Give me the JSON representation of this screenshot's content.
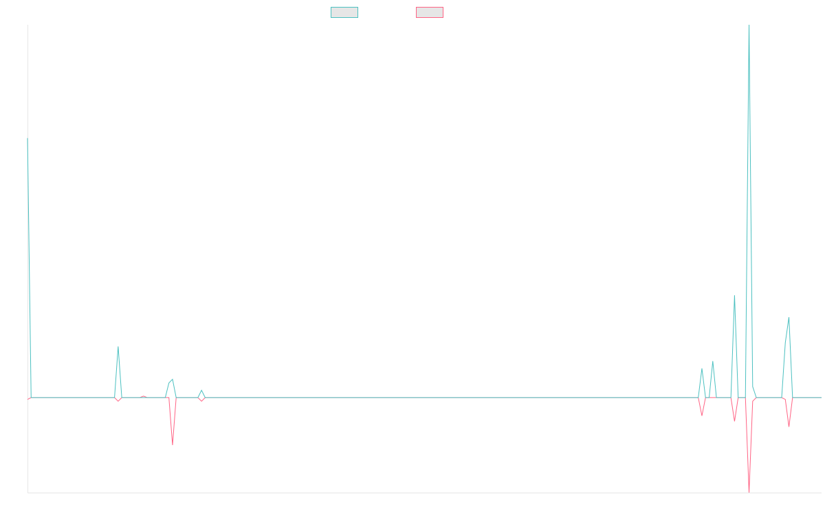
{
  "chart_data": {
    "type": "line",
    "title": "",
    "xlabel": "",
    "ylabel": "",
    "xlim": [
      0,
      219
    ],
    "ylim": [
      -26,
      102
    ],
    "grid": false,
    "legend": {
      "placement": "top-center"
    },
    "series": [
      {
        "name": "",
        "color": "#4bc0c0",
        "legend_fill": "#e6e6e6",
        "points": [
          [
            0,
            71
          ],
          [
            1,
            0
          ],
          [
            24,
            0
          ],
          [
            25,
            14
          ],
          [
            26,
            0
          ],
          [
            31,
            0
          ],
          [
            32,
            0
          ],
          [
            33,
            0
          ],
          [
            38,
            0
          ],
          [
            39,
            4
          ],
          [
            40,
            5
          ],
          [
            41,
            0
          ],
          [
            47,
            0
          ],
          [
            48,
            2
          ],
          [
            49,
            0
          ],
          [
            185,
            0
          ],
          [
            186,
            8
          ],
          [
            187,
            0
          ],
          [
            188,
            0
          ],
          [
            189,
            10
          ],
          [
            190,
            0
          ],
          [
            194,
            0
          ],
          [
            195,
            28
          ],
          [
            196,
            0
          ],
          [
            198,
            0
          ],
          [
            199,
            102
          ],
          [
            200,
            3
          ],
          [
            201,
            0
          ],
          [
            208,
            0
          ],
          [
            209,
            15
          ],
          [
            210,
            22
          ],
          [
            211,
            0
          ],
          [
            219,
            0
          ]
        ]
      },
      {
        "name": "",
        "color": "#ff6384",
        "legend_fill": "#e6e6e6",
        "points": [
          [
            0,
            -0.5
          ],
          [
            1,
            0
          ],
          [
            24,
            0
          ],
          [
            25,
            -1
          ],
          [
            26,
            0
          ],
          [
            31,
            0
          ],
          [
            32,
            0.4
          ],
          [
            33,
            0
          ],
          [
            38,
            0
          ],
          [
            39,
            0
          ],
          [
            40,
            -13
          ],
          [
            41,
            0
          ],
          [
            47,
            0
          ],
          [
            48,
            -1
          ],
          [
            49,
            0
          ],
          [
            185,
            0
          ],
          [
            186,
            -5
          ],
          [
            187,
            0
          ],
          [
            188,
            0
          ],
          [
            189,
            0
          ],
          [
            190,
            0
          ],
          [
            194,
            0
          ],
          [
            195,
            -6.5
          ],
          [
            196,
            0
          ],
          [
            198,
            0
          ],
          [
            199,
            -26
          ],
          [
            200,
            -1
          ],
          [
            201,
            0
          ],
          [
            208,
            0
          ],
          [
            209,
            -0.5
          ],
          [
            210,
            -8
          ],
          [
            211,
            0
          ],
          [
            219,
            0
          ]
        ]
      }
    ]
  }
}
